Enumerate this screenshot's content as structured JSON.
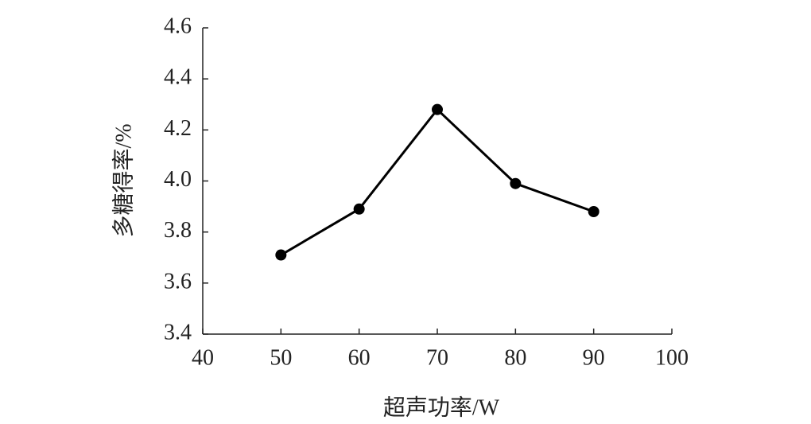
{
  "chart_data": {
    "type": "line",
    "x_label": "超声功率/W",
    "y_label": "多糖得率/%",
    "x": [
      50,
      60,
      70,
      80,
      90
    ],
    "values": [
      3.71,
      3.89,
      4.28,
      3.99,
      3.88
    ],
    "color": "#000000",
    "xlim": [
      40,
      100
    ],
    "xticks": [
      40,
      50,
      60,
      70,
      80,
      90,
      100
    ],
    "ylim": [
      3.4,
      4.6
    ],
    "yticks": [
      3.4,
      3.6,
      3.8,
      {
        "value": 4,
        "label": "4.0"
      },
      4.2,
      4.4,
      4.6
    ]
  }
}
